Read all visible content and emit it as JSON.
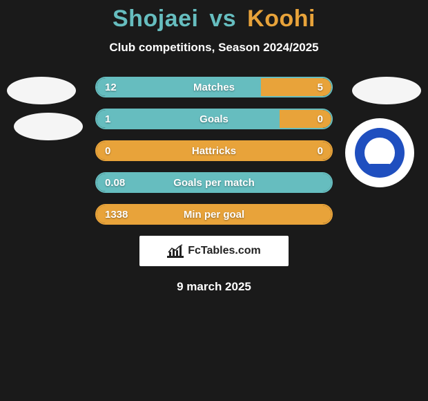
{
  "title": {
    "player1": "Shojaei",
    "vs": "vs",
    "player2": "Koohi",
    "player1_color": "#66bdbf",
    "player2_color": "#e8a33a"
  },
  "subtitle": "Club competitions, Season 2024/2025",
  "branding_text": "FcTables.com",
  "date_text": "9 march 2025",
  "colors": {
    "bg": "#1a1a1a",
    "left_bar": "#66bdbf",
    "right_bar": "#e8a33a",
    "border_left": "#66bdbf",
    "border_right": "#e8a33a"
  },
  "rows": [
    {
      "label": "Matches",
      "left_value": "12",
      "right_value": "5",
      "left_pct": 70,
      "right_pct": 30,
      "border_color": "#66bdbf"
    },
    {
      "label": "Goals",
      "left_value": "1",
      "right_value": "0",
      "left_pct": 78,
      "right_pct": 22,
      "border_color": "#66bdbf"
    },
    {
      "label": "Hattricks",
      "left_value": "0",
      "right_value": "0",
      "left_pct": 0,
      "right_pct": 100,
      "border_color": "#e8a33a"
    },
    {
      "label": "Goals per match",
      "left_value": "0.08",
      "right_value": "",
      "left_pct": 100,
      "right_pct": 0,
      "border_color": "#66bdbf"
    },
    {
      "label": "Min per goal",
      "left_value": "1338",
      "right_value": "",
      "left_pct": 0,
      "right_pct": 100,
      "border_color": "#e8a33a"
    }
  ]
}
